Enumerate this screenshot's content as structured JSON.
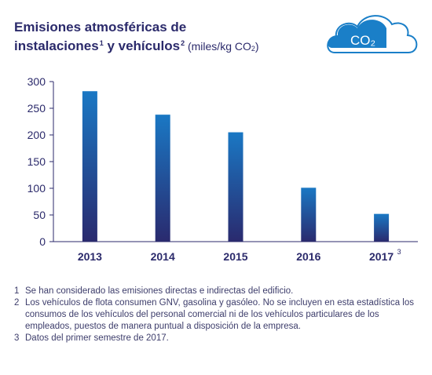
{
  "header": {
    "title_line1": "Emisiones atmosféricas de",
    "title_line2": "instalaciones",
    "title_sup1": "1",
    "title_mid": " y vehículos",
    "title_sup2": "2",
    "unit_prefix": " (miles/kg CO",
    "unit_sub": "2",
    "unit_suffix": ")"
  },
  "badge": {
    "text": "CO₂",
    "icon": "cloud-icon",
    "color": "#1a7fc8"
  },
  "colors": {
    "bar_top": "#1a78c4",
    "bar_bottom": "#2a2a6e",
    "axis": "#2b2a6b"
  },
  "chart_data": {
    "type": "bar",
    "categories": [
      "2013",
      "2014",
      "2015",
      "2016",
      "2017"
    ],
    "category_superscripts": [
      "",
      "",
      "",
      "",
      "3"
    ],
    "values": [
      282,
      238,
      205,
      101,
      52
    ],
    "yticks": [
      0,
      50,
      100,
      150,
      200,
      250,
      300
    ],
    "ylim": [
      0,
      300
    ],
    "grid": false,
    "title": "",
    "xlabel": "",
    "ylabel": ""
  },
  "notes": [
    {
      "num": "1",
      "text": "Se han considerado las emisiones directas e indirectas del edificio."
    },
    {
      "num": "2",
      "text": "Los vehículos de flota consumen GNV, gasolina y gasóleo. No se incluyen en esta estadística los consumos de los vehículos del personal comercial ni de los vehículos particulares de los empleados, puestos de manera puntual a disposición de la empresa."
    },
    {
      "num": "3",
      "text": "Datos del primer semestre de 2017."
    }
  ]
}
